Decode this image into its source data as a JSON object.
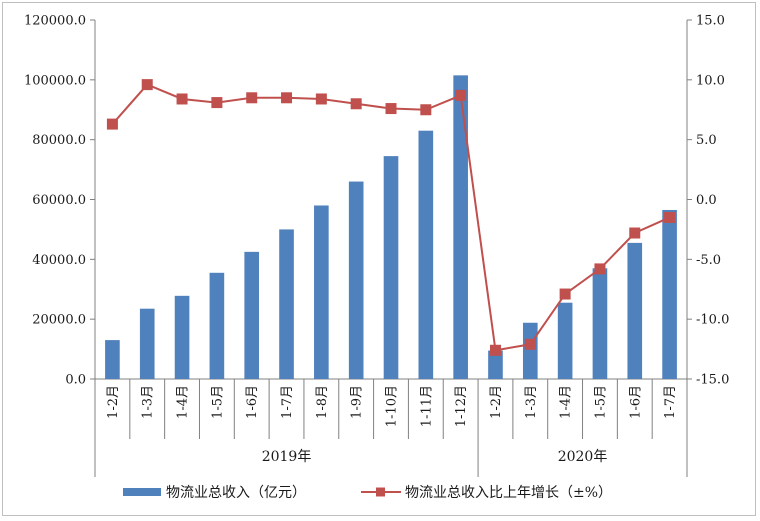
{
  "chart_data": {
    "type": "bar",
    "combo": "bar+line",
    "categories": [
      "1-2月",
      "1-3月",
      "1-4月",
      "1-5月",
      "1-6月",
      "1-7月",
      "1-8月",
      "1-9月",
      "1-10月",
      "1-11月",
      "1-12月",
      "1-2月",
      "1-3月",
      "1-4月",
      "1-5月",
      "1-6月",
      "1-7月"
    ],
    "groups": [
      {
        "label": "2019年",
        "count": 11
      },
      {
        "label": "2020年",
        "count": 6
      }
    ],
    "series": [
      {
        "name": "物流业总收入（亿元）",
        "type": "bar",
        "axis": "left",
        "color": "#4f81bd",
        "values": [
          13000,
          23500,
          27800,
          35500,
          42500,
          50000,
          58000,
          66000,
          74500,
          83000,
          101500,
          9500,
          18800,
          25500,
          37000,
          45500,
          56500
        ]
      },
      {
        "name": "物流业总收入比上年增长（±%）",
        "type": "line",
        "axis": "right",
        "color": "#c0504d",
        "values": [
          6.3,
          9.6,
          8.4,
          8.1,
          8.5,
          8.5,
          8.4,
          8.0,
          7.6,
          7.5,
          8.7,
          -12.6,
          -12.1,
          -7.9,
          -5.8,
          -2.8,
          -1.5
        ]
      }
    ],
    "ylim_left": [
      0,
      120000
    ],
    "ylim_right": [
      -15,
      15
    ],
    "yticks_left": [
      "0.0",
      "20000.0",
      "40000.0",
      "60000.0",
      "80000.0",
      "100000.0",
      "120000.0"
    ],
    "yticks_right": [
      "-15.0",
      "-10.0",
      "-5.0",
      "0.0",
      "5.0",
      "10.0",
      "15.0"
    ],
    "grid": false,
    "legend_position": "bottom"
  }
}
